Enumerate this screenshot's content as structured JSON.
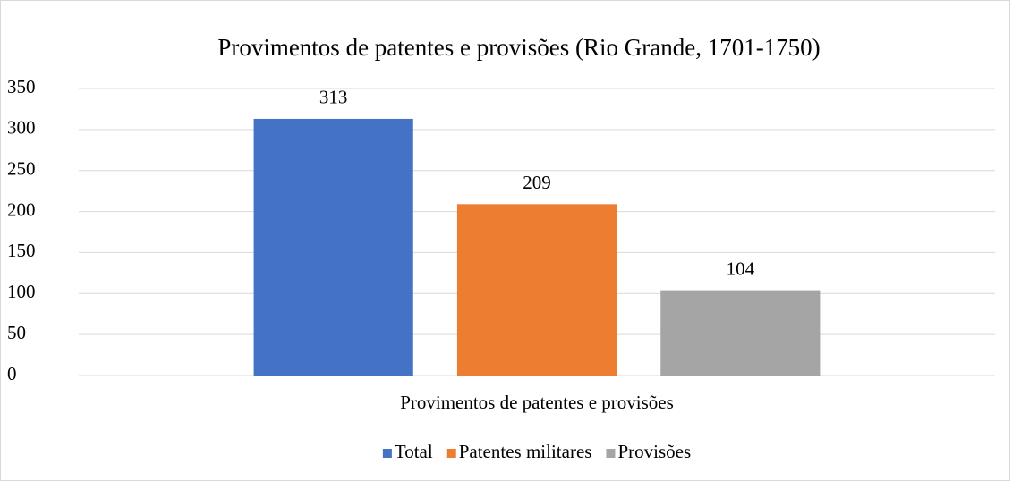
{
  "chart_data": {
    "type": "bar",
    "title": "Provimentos de patentes e provisões (Rio Grande, 1701-1750)",
    "categories": [
      "Provimentos de patentes e provisões"
    ],
    "series": [
      {
        "name": "Total",
        "color": "#4472c4",
        "values": [
          313
        ]
      },
      {
        "name": "Patentes militares",
        "color": "#ed7d31",
        "values": [
          209
        ]
      },
      {
        "name": "Provisões",
        "color": "#a5a5a5",
        "values": [
          104
        ]
      }
    ],
    "ylim": [
      0,
      350
    ],
    "yticks": [
      0,
      50,
      100,
      150,
      200,
      250,
      300,
      350
    ],
    "grid": true,
    "legend": "bottom"
  }
}
